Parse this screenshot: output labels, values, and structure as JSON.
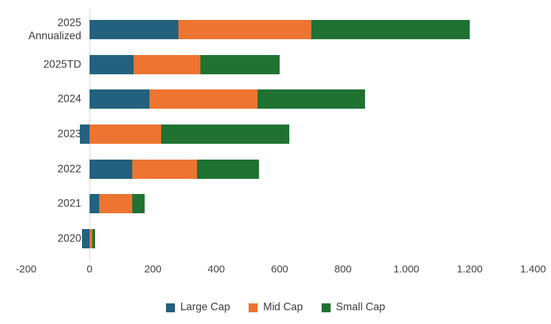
{
  "chart_data": {
    "type": "bar",
    "orientation": "horizontal",
    "stacked": true,
    "title": "",
    "xlabel": "",
    "ylabel": "",
    "categories": [
      "2025 Annualized",
      "2025TD",
      "2024",
      "2023",
      "2022",
      "2021",
      "2020"
    ],
    "series": [
      {
        "name": "Large Cap",
        "color": "#23617E",
        "values": [
          280,
          140,
          190,
          -30,
          135,
          30,
          -25
        ]
      },
      {
        "name": "Mid Cap",
        "color": "#ED7431",
        "values": [
          420,
          210,
          340,
          225,
          205,
          105,
          8
        ]
      },
      {
        "name": "Small Cap",
        "color": "#1F7232",
        "values": [
          500,
          250,
          340,
          405,
          195,
          40,
          9
        ]
      }
    ],
    "xlim": [
      -200,
      1400
    ],
    "x_ticks": [
      {
        "value": -200,
        "label": "-200"
      },
      {
        "value": 0,
        "label": "0"
      },
      {
        "value": 200,
        "label": "200"
      },
      {
        "value": 400,
        "label": "400"
      },
      {
        "value": 600,
        "label": "600"
      },
      {
        "value": 800,
        "label": "800"
      },
      {
        "value": 1000,
        "label": "1.000"
      },
      {
        "value": 1200,
        "label": "1.200"
      },
      {
        "value": 1400,
        "label": "1.400"
      }
    ],
    "grid": false,
    "legend_position": "bottom",
    "axis_line_color": "#d5d5d5"
  }
}
